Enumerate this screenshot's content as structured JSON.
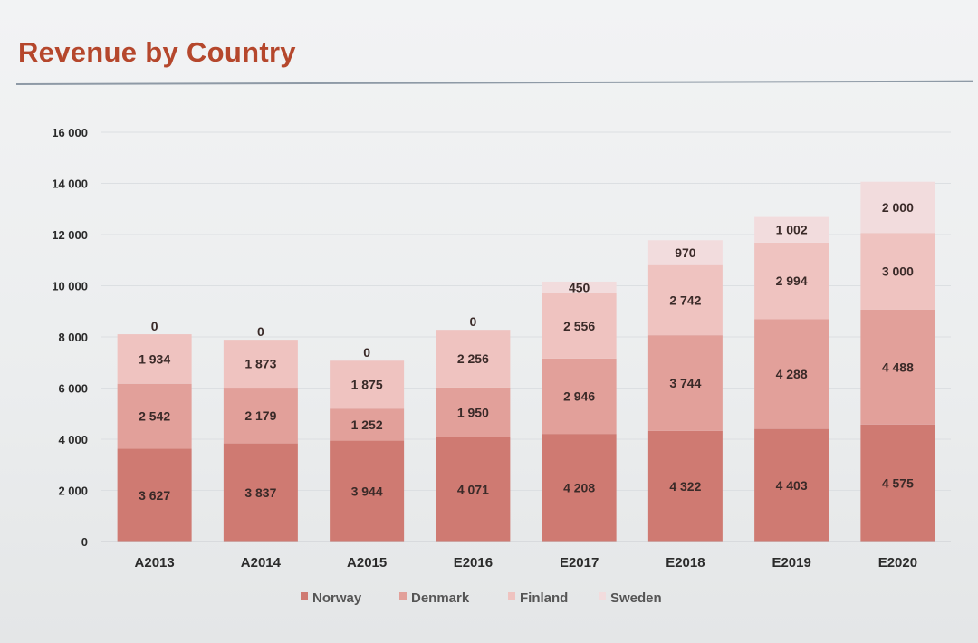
{
  "title": "Revenue by Country",
  "chart_data": {
    "type": "bar",
    "stacked": true,
    "title": "",
    "xlabel": "",
    "ylabel": "",
    "ylim": [
      0,
      16000
    ],
    "yticks": [
      0,
      2000,
      4000,
      6000,
      8000,
      10000,
      12000,
      14000,
      16000
    ],
    "ytick_labels": [
      "0",
      "2 000",
      "4 000",
      "6 000",
      "8 000",
      "10 000",
      "12 000",
      "14 000",
      "16 000"
    ],
    "grid": true,
    "legend_position": "bottom",
    "categories": [
      "A2013",
      "A2014",
      "A2015",
      "E2016",
      "E2017",
      "E2018",
      "E2019",
      "E2020"
    ],
    "series": [
      {
        "name": "Norway",
        "color": "#cf7a72",
        "values": [
          3627,
          3837,
          3944,
          4071,
          4208,
          4322,
          4403,
          4575
        ],
        "labels": [
          "3 627",
          "3 837",
          "3 944",
          "4 071",
          "4 208",
          "4 322",
          "4 403",
          "4 575"
        ]
      },
      {
        "name": "Denmark",
        "color": "#e2a09a",
        "values": [
          2542,
          2179,
          1252,
          1950,
          2946,
          3744,
          4288,
          4488
        ],
        "labels": [
          "2 542",
          "2 179",
          "1 252",
          "1 950",
          "2 946",
          "3 744",
          "4 288",
          "4 488"
        ]
      },
      {
        "name": "Finland",
        "color": "#efc3c0",
        "values": [
          1934,
          1873,
          1875,
          2256,
          2556,
          2742,
          2994,
          3000
        ],
        "labels": [
          "1 934",
          "1 873",
          "1 875",
          "2 256",
          "2 556",
          "2 742",
          "2 994",
          "3 000"
        ]
      },
      {
        "name": "Sweden",
        "color": "#f2dcdd",
        "values": [
          0,
          0,
          0,
          0,
          450,
          970,
          1002,
          2000
        ],
        "labels": [
          "0",
          "0",
          "0",
          "0",
          "450",
          "970",
          "1 002",
          "2 000"
        ]
      }
    ]
  }
}
